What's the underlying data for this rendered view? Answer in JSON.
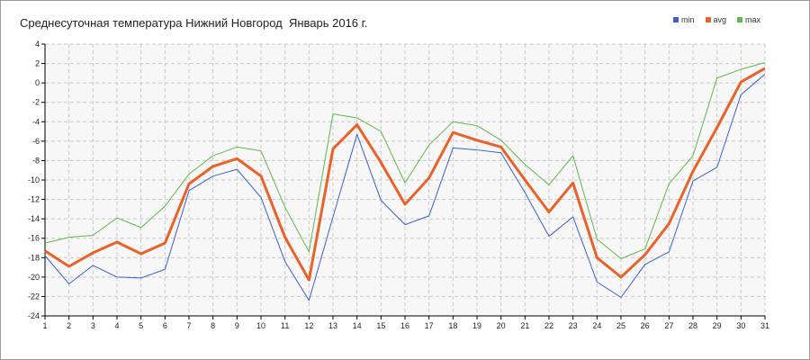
{
  "title": "Среднесуточная температура Нижний Новгород  Январь 2016 г.",
  "colors": {
    "min": "#3a5fcd",
    "avg": "#e8622a",
    "max": "#5fb84a",
    "grid": "#c8c8c8",
    "plot_bg": "#f7f7f7"
  },
  "chart_data": {
    "type": "line",
    "title": "Среднесуточная температура Нижний Новгород  Январь 2016 г.",
    "xlabel": "",
    "ylabel": "",
    "x": [
      1,
      2,
      3,
      4,
      5,
      6,
      7,
      8,
      9,
      10,
      11,
      12,
      13,
      14,
      15,
      16,
      17,
      18,
      19,
      20,
      21,
      22,
      23,
      24,
      25,
      26,
      27,
      28,
      29,
      30,
      31
    ],
    "ylim": [
      -24,
      4
    ],
    "y_ticks": [
      4,
      2,
      0,
      -2,
      -4,
      -6,
      -8,
      -10,
      -12,
      -14,
      -16,
      -18,
      -20,
      -22,
      -24
    ],
    "grid": true,
    "legend_position": "top-right",
    "series": [
      {
        "name": "min",
        "color": "#3a5fcd",
        "values": [
          -17.8,
          -20.7,
          -18.8,
          -20.0,
          -20.1,
          -19.2,
          -11.1,
          -9.6,
          -8.9,
          -11.8,
          -18.4,
          -22.4,
          -13.8,
          -5.3,
          -12.1,
          -14.6,
          -13.7,
          -6.7,
          -6.9,
          -7.2,
          -11.3,
          -15.8,
          -13.8,
          -20.5,
          -22.1,
          -18.7,
          -17.4,
          -10.1,
          -8.7,
          -1.2,
          0.9
        ]
      },
      {
        "name": "avg",
        "color": "#e8622a",
        "values": [
          -17.3,
          -18.9,
          -17.5,
          -16.4,
          -17.6,
          -16.5,
          -10.4,
          -8.6,
          -7.8,
          -9.6,
          -15.9,
          -20.3,
          -6.8,
          -4.3,
          -8.2,
          -12.5,
          -9.8,
          -5.1,
          -5.9,
          -6.6,
          -10.0,
          -13.3,
          -10.3,
          -18.0,
          -20.0,
          -17.7,
          -14.5,
          -9.1,
          -4.6,
          0.1,
          1.5
        ]
      },
      {
        "name": "max",
        "color": "#5fb84a",
        "values": [
          -16.5,
          -15.9,
          -15.7,
          -13.9,
          -14.9,
          -12.7,
          -9.4,
          -7.5,
          -6.6,
          -7.0,
          -12.8,
          -17.4,
          -3.2,
          -3.6,
          -5.0,
          -10.3,
          -6.4,
          -4.0,
          -4.4,
          -5.9,
          -8.4,
          -10.5,
          -7.5,
          -16.1,
          -18.1,
          -17.1,
          -10.4,
          -7.5,
          0.5,
          1.4,
          2.1
        ]
      }
    ]
  }
}
